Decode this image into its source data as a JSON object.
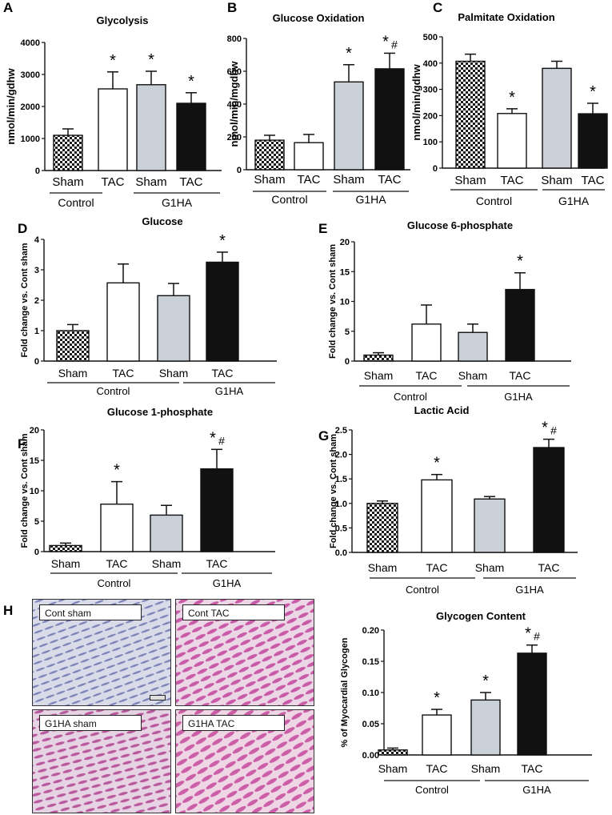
{
  "colors": {
    "sham": "checker",
    "tac": "#ffffff",
    "g1ha_sham": "#c9d0d8",
    "g1ha_tac": "#111111"
  },
  "group_labels": {
    "sham": "Sham",
    "tac": "TAC",
    "control": "Control",
    "g1ha": "G1HA"
  },
  "chart_data": [
    {
      "panel": "A",
      "type": "bar",
      "title": "Glycolysis",
      "ylabel": "nmol/min/gdhw",
      "ylim": [
        0,
        4000
      ],
      "yticks": [
        0,
        1000,
        2000,
        3000,
        4000
      ],
      "categories": [
        "Sham",
        "TAC",
        "Sham",
        "TAC"
      ],
      "groups": [
        "Control",
        "G1HA"
      ],
      "values": [
        1100,
        2550,
        2680,
        2100
      ],
      "errors": [
        200,
        530,
        420,
        330
      ],
      "annotations": [
        "",
        "*",
        "*",
        "*"
      ]
    },
    {
      "panel": "B",
      "type": "bar",
      "title": "Glucose Oxidation",
      "ylabel": "nmol/min/mgdhw",
      "ylim": [
        0,
        800
      ],
      "yticks": [
        0,
        200,
        400,
        600,
        800
      ],
      "categories": [
        "Sham",
        "TAC",
        "Sham",
        "TAC"
      ],
      "groups": [
        "Control",
        "G1HA"
      ],
      "values": [
        180,
        165,
        535,
        615
      ],
      "errors": [
        30,
        50,
        105,
        95
      ],
      "annotations": [
        "",
        "",
        "*",
        "*#"
      ]
    },
    {
      "panel": "C",
      "type": "bar",
      "title": "Palmitate Oxidation",
      "ylabel": "nmol/min/gdhw",
      "ylim": [
        0,
        500
      ],
      "yticks": [
        0,
        100,
        200,
        300,
        400,
        500
      ],
      "categories": [
        "Sham",
        "TAC",
        "Sham",
        "TAC"
      ],
      "groups": [
        "Control",
        "G1HA"
      ],
      "values": [
        407,
        208,
        380,
        207
      ],
      "errors": [
        27,
        18,
        27,
        40
      ],
      "annotations": [
        "",
        "*",
        "",
        "*"
      ]
    },
    {
      "panel": "D",
      "type": "bar",
      "title": "Glucose",
      "ylabel": "Fold change vs. Cont sham",
      "ylim": [
        0,
        4
      ],
      "yticks": [
        0,
        1,
        2,
        3,
        4
      ],
      "categories": [
        "Sham",
        "TAC",
        "Sham",
        "TAC"
      ],
      "groups": [
        "Control",
        "G1HA"
      ],
      "values": [
        1.0,
        2.57,
        2.15,
        3.25
      ],
      "errors": [
        0.2,
        0.62,
        0.4,
        0.33
      ],
      "annotations": [
        "",
        "",
        "",
        "*"
      ]
    },
    {
      "panel": "E",
      "type": "bar",
      "title": "Glucose 6-phosphate",
      "ylabel": "Fold change vs. Cont sham",
      "ylim": [
        0,
        20
      ],
      "yticks": [
        0,
        5,
        10,
        15,
        20
      ],
      "categories": [
        "Sham",
        "TAC",
        "Sham",
        "TAC"
      ],
      "groups": [
        "Control",
        "G1HA"
      ],
      "values": [
        1.0,
        6.2,
        4.8,
        12.0
      ],
      "errors": [
        0.4,
        3.2,
        1.4,
        2.8
      ],
      "annotations": [
        "",
        "",
        "",
        "*"
      ]
    },
    {
      "panel": "F",
      "type": "bar",
      "title": "Glucose 1-phosphate",
      "ylabel": "Fold change vs. Cont sham",
      "ylim": [
        0,
        20
      ],
      "yticks": [
        0,
        5,
        10,
        15,
        20
      ],
      "categories": [
        "Sham",
        "TAC",
        "Sham",
        "TAC"
      ],
      "groups": [
        "Control",
        "G1HA"
      ],
      "values": [
        1.0,
        7.8,
        6.0,
        13.6
      ],
      "errors": [
        0.4,
        3.7,
        1.6,
        3.2
      ],
      "annotations": [
        "",
        "*",
        "",
        "*#"
      ]
    },
    {
      "panel": "G",
      "type": "bar",
      "title": "Lactic Acid",
      "ylabel": "Fold change vs. Cont sham",
      "ylim": [
        0,
        2.5
      ],
      "yticks": [
        "0.0",
        "0.5",
        "1.0",
        "1.5",
        "2.0",
        "2.5"
      ],
      "categories": [
        "Sham",
        "TAC",
        "Sham",
        "TAC"
      ],
      "groups": [
        "Control",
        "G1HA"
      ],
      "values": [
        1.0,
        1.48,
        1.09,
        2.14
      ],
      "errors": [
        0.05,
        0.11,
        0.05,
        0.17
      ],
      "annotations": [
        "",
        "*",
        "",
        "*#"
      ]
    },
    {
      "panel": "",
      "type": "bar",
      "title": "Glycogen Content",
      "ylabel": "% of Myocardial Glycogen",
      "ylim": [
        0,
        0.2
      ],
      "yticks": [
        "0.00",
        "0.05",
        "0.10",
        "0.15",
        "0.20"
      ],
      "categories": [
        "Sham",
        "TAC",
        "Sham",
        "TAC"
      ],
      "groups": [
        "Control",
        "G1HA"
      ],
      "values": [
        0.008,
        0.064,
        0.088,
        0.163
      ],
      "errors": [
        0.003,
        0.009,
        0.012,
        0.013
      ],
      "annotations": [
        "",
        "*",
        "*",
        "*#"
      ]
    }
  ],
  "histology": {
    "panel": "H",
    "images": [
      {
        "label": "Cont sham",
        "stain": "light"
      },
      {
        "label": "Cont TAC",
        "stain": "pink"
      },
      {
        "label": "G1HA sham",
        "stain": "pink"
      },
      {
        "label": "G1HA TAC",
        "stain": "pink"
      }
    ]
  }
}
